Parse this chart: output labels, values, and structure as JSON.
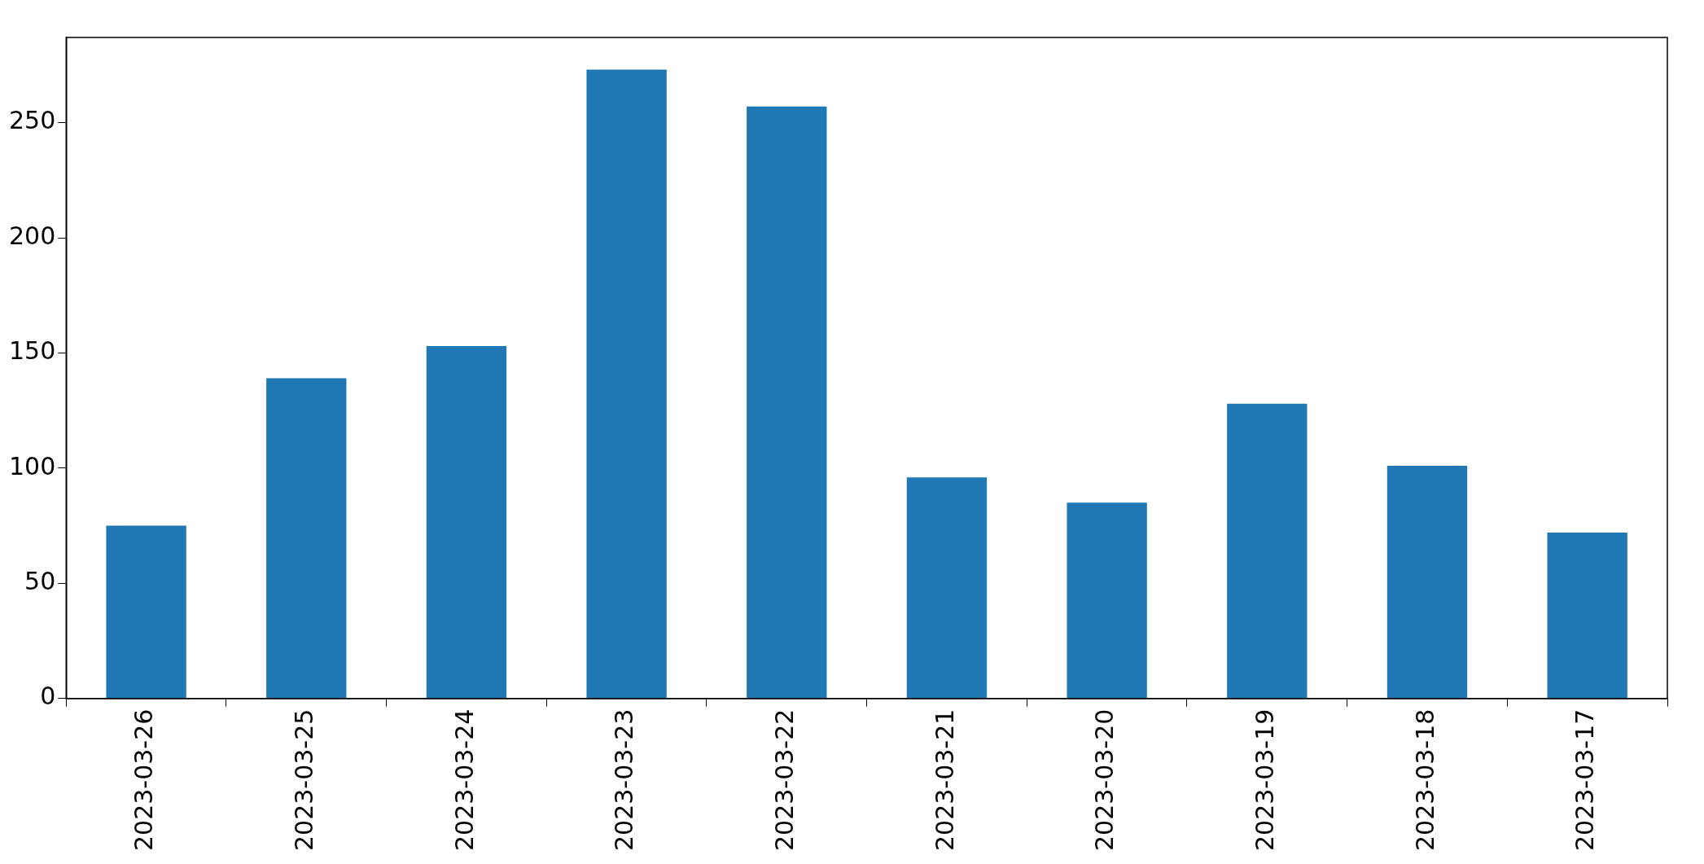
{
  "chart_data": {
    "type": "bar",
    "categories": [
      "2023-03-26",
      "2023-03-25",
      "2023-03-24",
      "2023-03-23",
      "2023-03-22",
      "2023-03-21",
      "2023-03-20",
      "2023-03-19",
      "2023-03-18",
      "2023-03-17"
    ],
    "values": [
      75,
      139,
      153,
      273,
      257,
      96,
      85,
      128,
      101,
      72
    ],
    "color": "#1f77b4",
    "ylim": [
      0,
      287
    ],
    "yticks": [
      0,
      50,
      100,
      150,
      200,
      250
    ],
    "grid": false,
    "legend": false
  }
}
